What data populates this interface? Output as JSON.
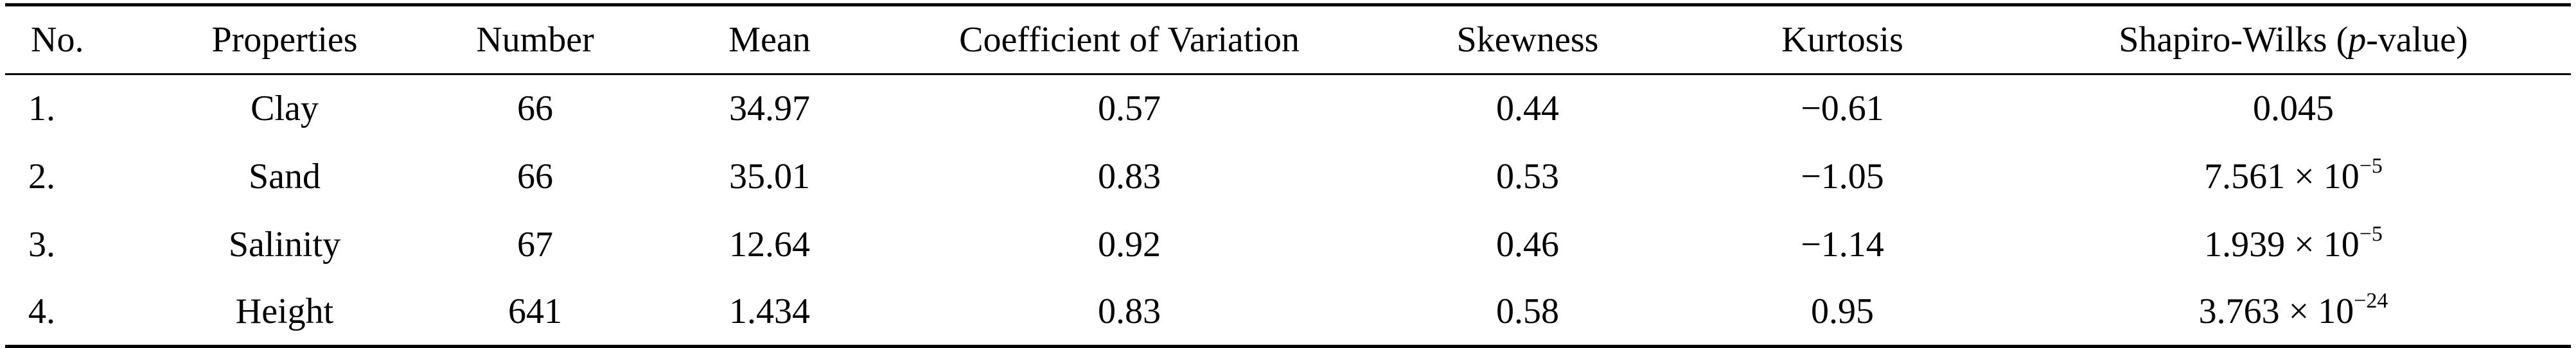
{
  "table": {
    "headers": {
      "no": "No.",
      "properties": "Properties",
      "number": "Number",
      "mean": "Mean",
      "cv": "Coefficient of Variation",
      "skewness": "Skewness",
      "kurtosis": "Kurtosis",
      "sw_prefix": "Shapiro-Wilks (",
      "sw_italic": "p",
      "sw_suffix": "-value)"
    },
    "rows": [
      {
        "no": "1.",
        "property": "Clay",
        "number": "66",
        "mean": "34.97",
        "cv": "0.57",
        "skewness": "0.44",
        "kurtosis": "−0.61",
        "pvalue_base": "0.045",
        "pvalue_exp": ""
      },
      {
        "no": "2.",
        "property": "Sand",
        "number": "66",
        "mean": "35.01",
        "cv": "0.83",
        "skewness": "0.53",
        "kurtosis": "−1.05",
        "pvalue_base": "7.561 × 10",
        "pvalue_exp": "−5"
      },
      {
        "no": "3.",
        "property": "Salinity",
        "number": "67",
        "mean": "12.64",
        "cv": "0.92",
        "skewness": "0.46",
        "kurtosis": "−1.14",
        "pvalue_base": "1.939 × 10",
        "pvalue_exp": "−5"
      },
      {
        "no": "4.",
        "property": "Height",
        "number": "641",
        "mean": "1.434",
        "cv": "0.83",
        "skewness": "0.58",
        "kurtosis": "0.95",
        "pvalue_base": "3.763 × 10",
        "pvalue_exp": "−24"
      }
    ]
  }
}
